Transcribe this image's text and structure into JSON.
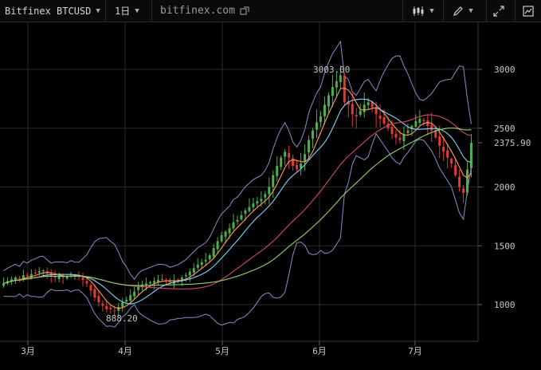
{
  "toolbar": {
    "symbol": "Bitfinex BTCUSD",
    "interval": "1日",
    "site": "bitfinex.com"
  },
  "colors": {
    "up": "#4caf50",
    "down": "#e53935",
    "ma_fast": "#ff9f50",
    "ma_mid": "#7fd3ff",
    "ma_slow": "#d04a6a",
    "ma_long": "#8fd468",
    "band": "#8a8dc4"
  },
  "chart_data": {
    "type": "candlestick",
    "y_ticks": [
      1000,
      1500,
      2000,
      2500,
      3000
    ],
    "x_ticks": [
      "3月",
      "4月",
      "5月",
      "6月",
      "7月"
    ],
    "last_price": 2375.9,
    "last_price_label": "2375.90",
    "high_label": "3003.00",
    "high_value": 3003.0,
    "low_label": "888.20",
    "low_value": 888.2,
    "close_series": [
      1180,
      1200,
      1215,
      1230,
      1215,
      1250,
      1240,
      1260,
      1270,
      1285,
      1290,
      1265,
      1240,
      1230,
      1250,
      1230,
      1245,
      1260,
      1250,
      1235,
      1210,
      1180,
      1120,
      1060,
      1020,
      990,
      960,
      960,
      950,
      980,
      1020,
      1040,
      1080,
      1110,
      1150,
      1170,
      1180,
      1190,
      1200,
      1210,
      1210,
      1205,
      1190,
      1200,
      1210,
      1230,
      1250,
      1280,
      1310,
      1340,
      1360,
      1380,
      1420,
      1480,
      1540,
      1590,
      1620,
      1650,
      1700,
      1720,
      1760,
      1800,
      1830,
      1860,
      1880,
      1900,
      1940,
      2000,
      2100,
      2180,
      2250,
      2300,
      2250,
      2180,
      2150,
      2200,
      2280,
      2400,
      2480,
      2550,
      2600,
      2700,
      2780,
      2850,
      2900,
      2950,
      2720,
      2700,
      2620,
      2600,
      2650,
      2700,
      2720,
      2680,
      2620,
      2580,
      2540,
      2500,
      2450,
      2420,
      2400,
      2450,
      2480,
      2520,
      2560,
      2580,
      2560,
      2520,
      2480,
      2420,
      2350,
      2300,
      2250,
      2200,
      2100,
      2000,
      1950,
      2150,
      2376
    ]
  }
}
